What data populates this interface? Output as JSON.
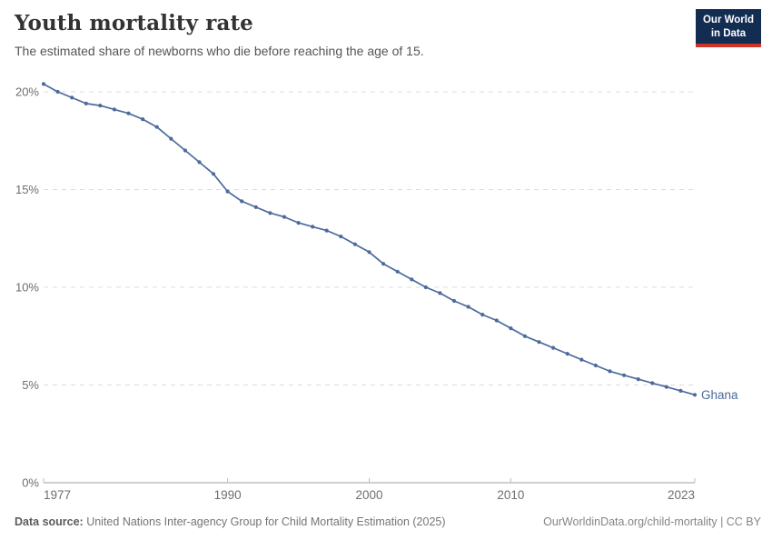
{
  "header": {
    "title": "Youth mortality rate",
    "subtitle": "The estimated share of newborns who die before reaching the age of 15.",
    "logo": {
      "line1": "Our World",
      "line2": "in Data",
      "bg_color": "#132c52",
      "accent_color": "#cc3528"
    }
  },
  "chart_data": {
    "type": "line",
    "title": "Youth mortality rate",
    "entity": "Ghana",
    "line_color": "#4c6a9c",
    "grid": true,
    "legend_position": "end-of-line",
    "ylim": [
      0,
      20
    ],
    "yticks": [
      0,
      5,
      10,
      15,
      20
    ],
    "ytick_suffix": "%",
    "xticks": [
      1977,
      1990,
      2000,
      2010,
      2023
    ],
    "xlabel": "",
    "ylabel": "",
    "x": [
      1977,
      1978,
      1979,
      1980,
      1981,
      1982,
      1983,
      1984,
      1985,
      1986,
      1987,
      1988,
      1989,
      1990,
      1991,
      1992,
      1993,
      1994,
      1995,
      1996,
      1997,
      1998,
      1999,
      2000,
      2001,
      2002,
      2003,
      2004,
      2005,
      2006,
      2007,
      2008,
      2009,
      2010,
      2011,
      2012,
      2013,
      2014,
      2015,
      2016,
      2017,
      2018,
      2019,
      2020,
      2021,
      2022,
      2023
    ],
    "values": [
      20.4,
      20.0,
      19.7,
      19.4,
      19.3,
      19.1,
      18.9,
      18.6,
      18.2,
      17.6,
      17.0,
      16.4,
      15.8,
      14.9,
      14.4,
      14.1,
      13.8,
      13.6,
      13.3,
      13.1,
      12.9,
      12.6,
      12.2,
      11.8,
      11.2,
      10.8,
      10.4,
      10.0,
      9.7,
      9.3,
      9.0,
      8.6,
      8.3,
      7.9,
      7.5,
      7.2,
      6.9,
      6.6,
      6.3,
      6.0,
      5.7,
      5.5,
      5.3,
      5.1,
      4.9,
      4.7,
      4.5
    ]
  },
  "footer": {
    "source_label": "Data source:",
    "source_text": " United Nations Inter-agency Group for Child Mortality Estimation (2025)",
    "attribution": "OurWorldinData.org/child-mortality | CC BY"
  }
}
